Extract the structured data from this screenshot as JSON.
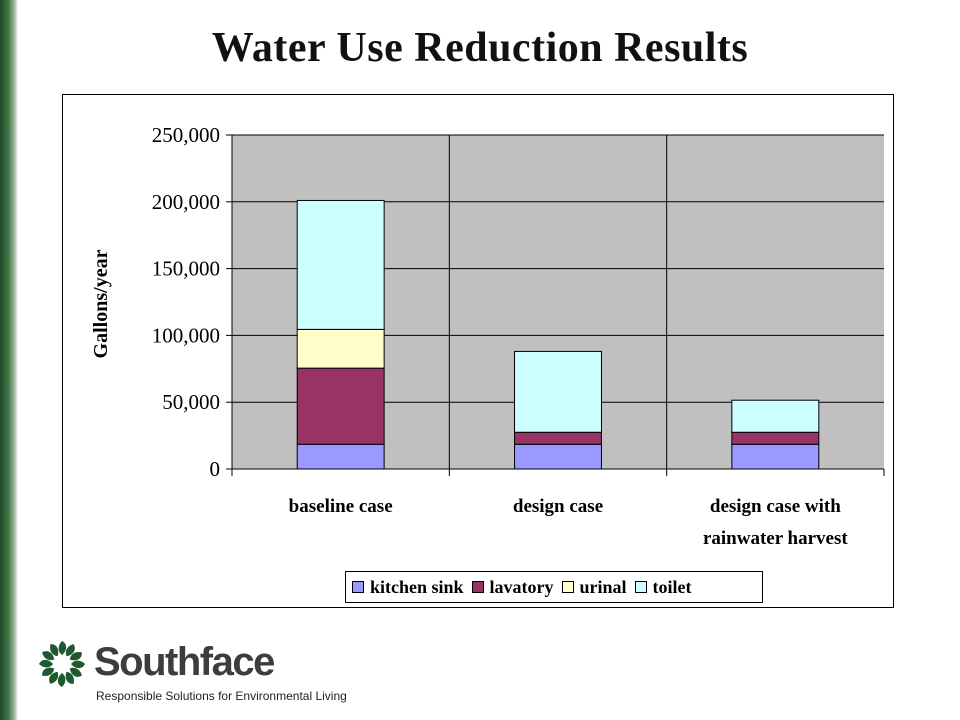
{
  "slide": {
    "title": "Water Use Reduction Results"
  },
  "chart_data": {
    "type": "bar",
    "stacked": true,
    "title": "",
    "xlabel": "",
    "ylabel": "Gallons/year",
    "ylim": [
      0,
      250000
    ],
    "yticks": [
      0,
      50000,
      100000,
      150000,
      200000,
      250000
    ],
    "ytick_labels": [
      "0",
      "50,000",
      "100,000",
      "150,000",
      "200,000",
      "250,000"
    ],
    "categories": [
      [
        "baseline case"
      ],
      [
        "design case"
      ],
      [
        "design case with",
        "rainwater harvest"
      ]
    ],
    "series": [
      {
        "name": "kitchen sink",
        "color": "#9999ff",
        "values": [
          18500,
          18500,
          18500
        ]
      },
      {
        "name": "lavatory",
        "color": "#993366",
        "values": [
          57000,
          9000,
          9000
        ]
      },
      {
        "name": "urinal",
        "color": "#ffffcc",
        "values": [
          29000,
          0,
          0
        ]
      },
      {
        "name": "toilet",
        "color": "#ccffff",
        "values": [
          96500,
          60500,
          24000
        ]
      }
    ],
    "plot_background": "#c0c0c0",
    "grid": true,
    "legend_position": "bottom-right"
  },
  "legend": {
    "items": [
      {
        "label": "kitchen sink",
        "color": "#9999ff"
      },
      {
        "label": "lavatory",
        "color": "#993366"
      },
      {
        "label": "urinal",
        "color": "#ffffcc"
      },
      {
        "label": "toilet",
        "color": "#ccffff"
      }
    ]
  },
  "logo": {
    "name": "Southface",
    "tagline": "Responsible Solutions for Environmental Living",
    "color": "#1f5a2e"
  }
}
